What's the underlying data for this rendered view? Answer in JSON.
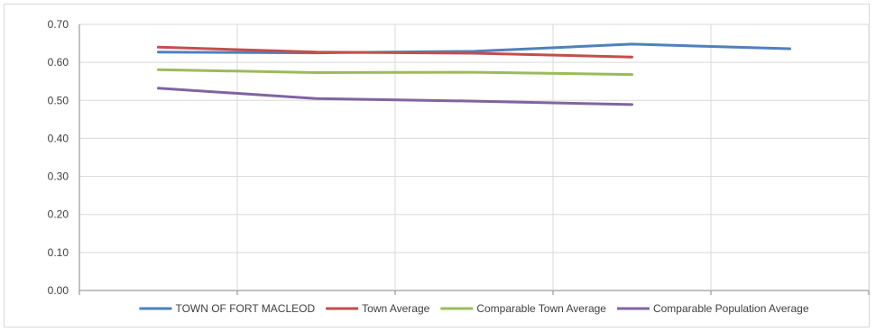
{
  "chart_data": {
    "type": "line",
    "title": "",
    "xlabel": "",
    "ylabel": "",
    "ylim": [
      0,
      0.7
    ],
    "y_ticks": [
      "0.00",
      "0.10",
      "0.20",
      "0.30",
      "0.40",
      "0.50",
      "0.60",
      "0.70"
    ],
    "x_count": 5,
    "grid": "vertical and horizontal",
    "legend_position": "bottom",
    "series": [
      {
        "name": "TOWN OF FORT MACLEOD",
        "color": "#4f81bd",
        "values": [
          0.627,
          0.625,
          0.629,
          0.648,
          0.636
        ]
      },
      {
        "name": "Town Average",
        "color": "#c0504d",
        "values": [
          0.64,
          0.627,
          0.624,
          0.614,
          null
        ]
      },
      {
        "name": "Comparable Town Average",
        "color": "#9bbb59",
        "values": [
          0.581,
          0.573,
          0.574,
          0.568,
          null
        ]
      },
      {
        "name": "Comparable Population Average",
        "color": "#8064a2",
        "values": [
          0.532,
          0.505,
          0.498,
          0.489,
          null
        ]
      }
    ]
  }
}
